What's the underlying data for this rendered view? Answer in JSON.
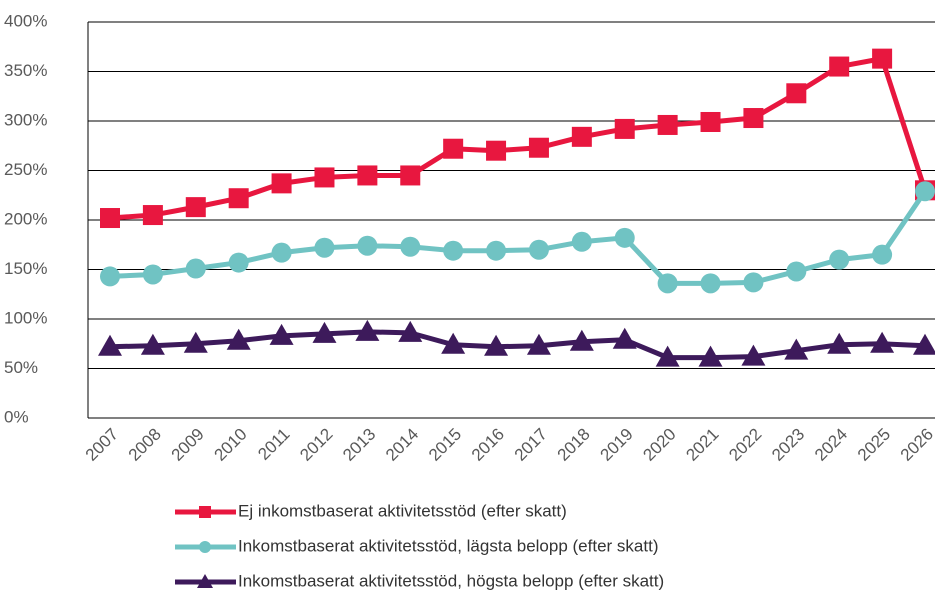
{
  "chart_data": {
    "type": "line",
    "categories": [
      "2007",
      "2008",
      "2009",
      "2010",
      "2011",
      "2012",
      "2013",
      "2014",
      "2015",
      "2016",
      "2017",
      "2018",
      "2019",
      "2020",
      "2021",
      "2022",
      "2023",
      "2024",
      "2025",
      "2026"
    ],
    "series": [
      {
        "name": "Ej inkomstbaserat aktivitetsstöd (efter skatt)",
        "color": "#e8173f",
        "marker": "square",
        "values": [
          202,
          205,
          213,
          222,
          237,
          243,
          245,
          245,
          272,
          270,
          273,
          284,
          292,
          296,
          299,
          303,
          328,
          355,
          363,
          230
        ]
      },
      {
        "name": "Inkomstbaserat aktivitetsstöd, lägsta belopp (efter skatt)",
        "color": "#70c3c3",
        "marker": "circle",
        "values": [
          143,
          145,
          151,
          157,
          167,
          172,
          174,
          173,
          169,
          169,
          170,
          178,
          182,
          136,
          136,
          137,
          148,
          160,
          165,
          229
        ]
      },
      {
        "name": "Inkomstbaserat aktivitetsstöd, högsta belopp (efter skatt)",
        "color": "#3d1a5b",
        "marker": "triangle",
        "values": [
          72,
          73,
          75,
          78,
          83,
          85,
          87,
          86,
          74,
          72,
          73,
          77,
          79,
          61,
          61,
          62,
          68,
          74,
          75,
          73
        ]
      }
    ],
    "ylim": [
      0,
      400
    ],
    "yticks": [
      {
        "value": 0,
        "label": "0%"
      },
      {
        "value": 50,
        "label": "50%"
      },
      {
        "value": 100,
        "label": "100%"
      },
      {
        "value": 150,
        "label": "150%"
      },
      {
        "value": 200,
        "label": "200%"
      },
      {
        "value": 250,
        "label": "250%"
      },
      {
        "value": 300,
        "label": "300%"
      },
      {
        "value": 350,
        "label": "350%"
      },
      {
        "value": 400,
        "label": "400%"
      }
    ],
    "grid": true,
    "legend": "bottom"
  }
}
